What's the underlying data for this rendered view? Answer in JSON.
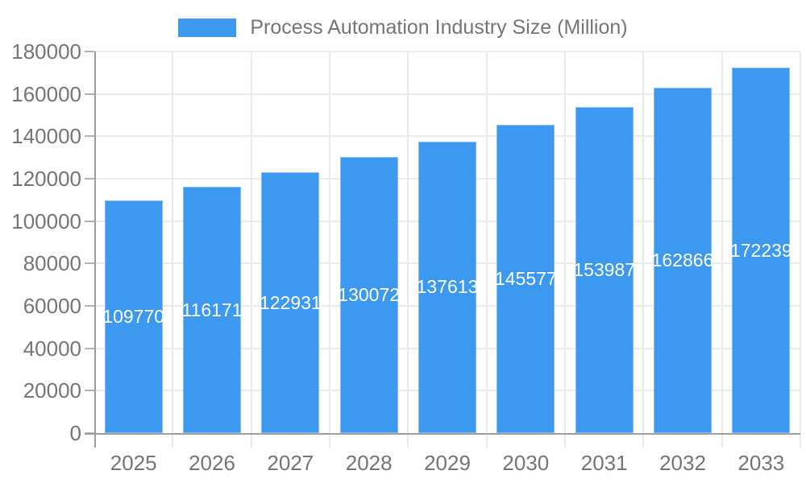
{
  "legend": {
    "label": "Process Automation Industry Size (Million)"
  },
  "chart_data": {
    "type": "bar",
    "title": "Process Automation Industry Size (Million)",
    "series_name": "Process Automation Industry Size (Million)",
    "categories": [
      "2025",
      "2026",
      "2027",
      "2028",
      "2029",
      "2030",
      "2031",
      "2032",
      "2033"
    ],
    "values": [
      109770,
      116171,
      122931,
      130072,
      137613,
      145577,
      153987,
      162866,
      172239
    ],
    "bar_labels": [
      "109770",
      "116171",
      "122931",
      "130072",
      "137613",
      "145577",
      "153987",
      "162866",
      "172239"
    ],
    "xlabel": "",
    "ylabel": "",
    "ylim": [
      0,
      180000
    ],
    "ytick_step": 20000,
    "y_tick_labels": [
      "0",
      "20000",
      "40000",
      "60000",
      "80000",
      "100000",
      "120000",
      "140000",
      "160000",
      "180000"
    ],
    "grid": true,
    "legend_position": "top",
    "colors": {
      "bar": "#3d99f0",
      "annotation_text": "#ffffff",
      "axis_text": "#757575",
      "gridline": "#ebebeb",
      "axis_line": "#9e9e9e",
      "tick": "#b3b3b3",
      "background": "#ffffff"
    }
  }
}
